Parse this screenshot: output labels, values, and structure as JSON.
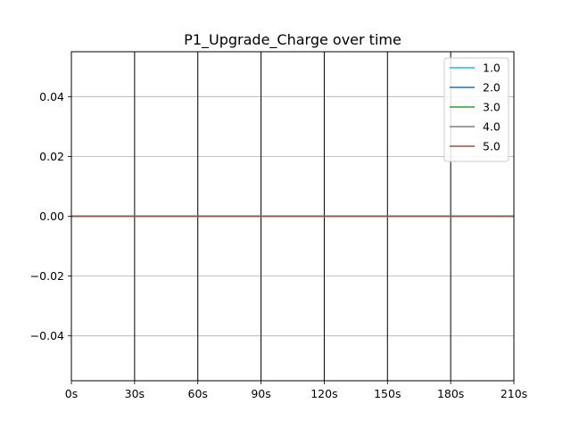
{
  "chart_data": {
    "type": "line",
    "title": "P1_Upgrade_Charge over time",
    "xlabel": "",
    "ylabel": "",
    "x": [
      0,
      30,
      60,
      90,
      120,
      150,
      180,
      210
    ],
    "x_tick_labels": [
      "0s",
      "30s",
      "60s",
      "90s",
      "120s",
      "150s",
      "180s",
      "210s"
    ],
    "xlim": [
      0,
      210
    ],
    "y_ticks": [
      -0.04,
      -0.02,
      0.0,
      0.02,
      0.04
    ],
    "y_tick_labels": [
      "−0.04",
      "−0.02",
      "0.00",
      "0.02",
      "0.04"
    ],
    "ylim": [
      -0.055,
      0.055
    ],
    "grid": {
      "horizontal": true,
      "vertical_at_ticks": true
    },
    "legend_position": "top-right",
    "series": [
      {
        "name": "1.0",
        "color": "#17becf",
        "values": [
          0,
          0,
          0,
          0,
          0,
          0,
          0,
          0
        ]
      },
      {
        "name": "2.0",
        "color": "#1f77b4",
        "values": [
          0,
          0,
          0,
          0,
          0,
          0,
          0,
          0
        ]
      },
      {
        "name": "3.0",
        "color": "#2ca02c",
        "values": [
          0,
          0,
          0,
          0,
          0,
          0,
          0,
          0
        ]
      },
      {
        "name": "4.0",
        "color": "#7f7f7f",
        "values": [
          0,
          0,
          0,
          0,
          0,
          0,
          0,
          0
        ]
      },
      {
        "name": "5.0",
        "color": "#8c564b",
        "values": [
          0,
          0,
          0,
          0,
          0,
          0,
          0,
          0
        ]
      }
    ]
  }
}
